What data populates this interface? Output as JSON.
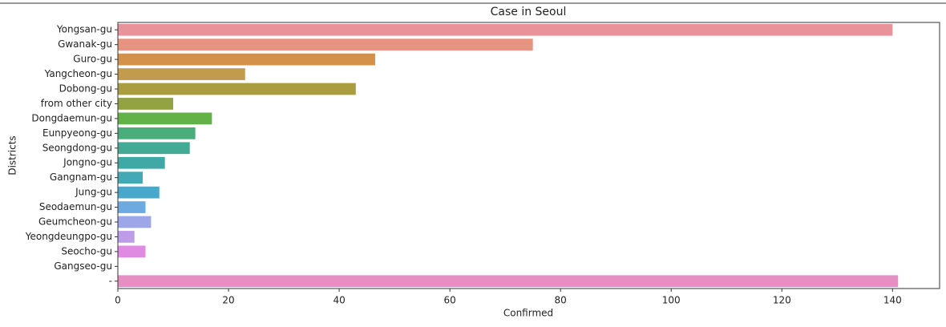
{
  "chart_data": {
    "type": "barh",
    "title": "Case in Seoul",
    "xlabel": "Confirmed",
    "ylabel": "Districts",
    "categories": [
      "Yongsan-gu",
      "Gwanak-gu",
      "Guro-gu",
      "Yangcheon-gu",
      "Dobong-gu",
      "from other city",
      "Dongdaemun-gu",
      "Eunpyeong-gu",
      "Seongdong-gu",
      "Jongno-gu",
      "Gangnam-gu",
      "Jung-gu",
      "Seodaemun-gu",
      "Geumcheon-gu",
      "Yeongdeungpo-gu",
      "Seocho-gu",
      "Gangseo-gu",
      "-"
    ],
    "values": [
      140,
      75,
      46.5,
      23,
      43,
      10,
      17,
      14,
      13,
      8.5,
      4.5,
      7.5,
      5,
      6,
      3,
      5,
      0,
      141
    ],
    "colors": [
      "#e8939a",
      "#e8937f",
      "#d4914a",
      "#c29c4c",
      "#a99d40",
      "#93a33f",
      "#62b246",
      "#48ae7c",
      "#43ab95",
      "#41a9a5",
      "#43aab5",
      "#48a8cb",
      "#6eaae2",
      "#9ca6e8",
      "#bd9ce8",
      "#e08be2",
      "#e38dd0",
      "#e68fc3"
    ],
    "xlim": [
      0,
      148.5
    ],
    "xticks": [
      0,
      20,
      40,
      60,
      80,
      100,
      120,
      140
    ]
  }
}
